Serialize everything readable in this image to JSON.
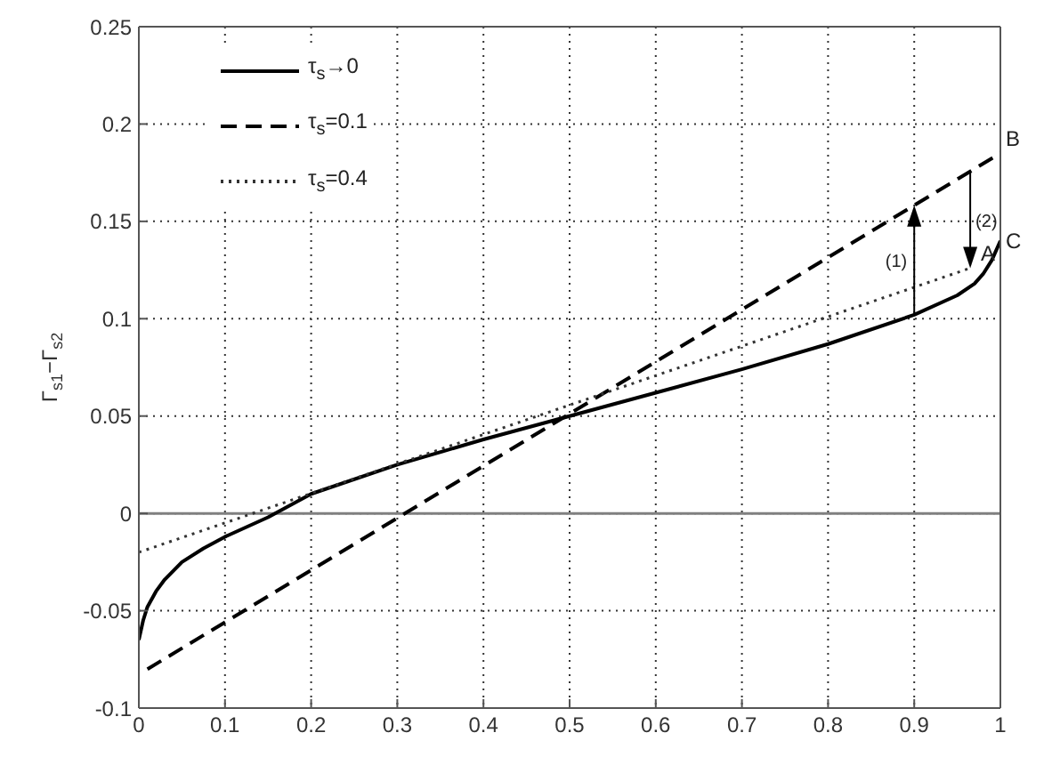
{
  "chart_data": {
    "type": "line",
    "ylabel": "Γ$_{s1}$−Γ$_{s2}$",
    "xlim": [
      0,
      1
    ],
    "ylim": [
      -0.1,
      0.25
    ],
    "xticks": [
      0,
      0.1,
      0.2,
      0.3,
      0.4,
      0.5,
      0.6,
      0.7,
      0.8,
      0.9,
      1
    ],
    "yticks": [
      -0.1,
      -0.05,
      0,
      0.05,
      0.1,
      0.15,
      0.2,
      0.25
    ],
    "grid": true,
    "legend": "top left",
    "marker": "none",
    "series": [
      {
        "name": "τ$_{s}$→0",
        "color": "#000000",
        "line_style": "solid",
        "x": [
          0,
          0.005,
          0.01,
          0.02,
          0.03,
          0.05,
          0.075,
          0.1,
          0.15,
          0.2,
          0.3,
          0.4,
          0.5,
          0.6,
          0.7,
          0.8,
          0.9,
          0.95,
          0.97,
          0.98,
          0.99,
          1
        ],
        "values": [
          -0.065,
          -0.055,
          -0.048,
          -0.04,
          -0.034,
          -0.025,
          -0.018,
          -0.012,
          -0.002,
          0.01,
          0.025,
          0.038,
          0.05,
          0.062,
          0.074,
          0.087,
          0.102,
          0.112,
          0.118,
          0.123,
          0.13,
          0.14
        ]
      },
      {
        "name": "τ$_{s}$=0.1",
        "color": "#000000",
        "line_style": "dashed",
        "x": [
          0.01,
          1
        ],
        "values": [
          -0.08,
          0.185
        ]
      },
      {
        "name": "τ$_{s}$=0.4",
        "color": "#333333",
        "line_style": "dotted",
        "x": [
          0,
          0.965
        ],
        "values": [
          -0.02,
          0.126
        ]
      }
    ],
    "ref_lines": [
      {
        "axis": "y",
        "value": 0,
        "color": "#808080"
      }
    ],
    "annotations": [
      {
        "text": "(1)",
        "x": 0.9,
        "y": 0.102
      },
      {
        "text": "(2)",
        "x": 0.965,
        "y": 0.126
      },
      {
        "text": "A",
        "x": 0.965,
        "y": 0.126
      },
      {
        "text": "B",
        "x": 1,
        "y": 0.185
      },
      {
        "text": "C",
        "x": 1,
        "y": 0.14
      }
    ]
  }
}
